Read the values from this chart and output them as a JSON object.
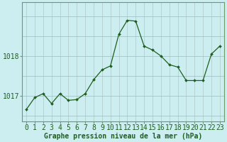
{
  "x": [
    0,
    1,
    2,
    3,
    4,
    5,
    6,
    7,
    8,
    9,
    10,
    11,
    12,
    13,
    14,
    15,
    16,
    17,
    18,
    19,
    20,
    21,
    22,
    23
  ],
  "y": [
    1016.65,
    1016.95,
    1017.05,
    1016.8,
    1017.05,
    1016.88,
    1016.9,
    1017.05,
    1017.4,
    1017.65,
    1017.75,
    1018.55,
    1018.9,
    1018.88,
    1018.25,
    1018.15,
    1018.0,
    1017.78,
    1017.72,
    1017.38,
    1017.38,
    1017.38,
    1018.05,
    1018.25
  ],
  "line_color": "#1f5e1f",
  "marker_color": "#1f5e1f",
  "background_color": "#cceef0",
  "grid_color_v": "#b0c8c8",
  "grid_color_h": "#c8a8a8",
  "xlabel": "Graphe pression niveau de la mer (hPa)",
  "xlabel_color": "#1f5e1f",
  "ylabel_ticks": [
    1017,
    1018
  ],
  "ylim": [
    1016.35,
    1019.35
  ],
  "xlim": [
    -0.5,
    23.5
  ],
  "tick_label_color": "#1f5e1f",
  "border_color": "#6a9a6a",
  "xlabel_fontsize": 7,
  "tick_fontsize": 7
}
